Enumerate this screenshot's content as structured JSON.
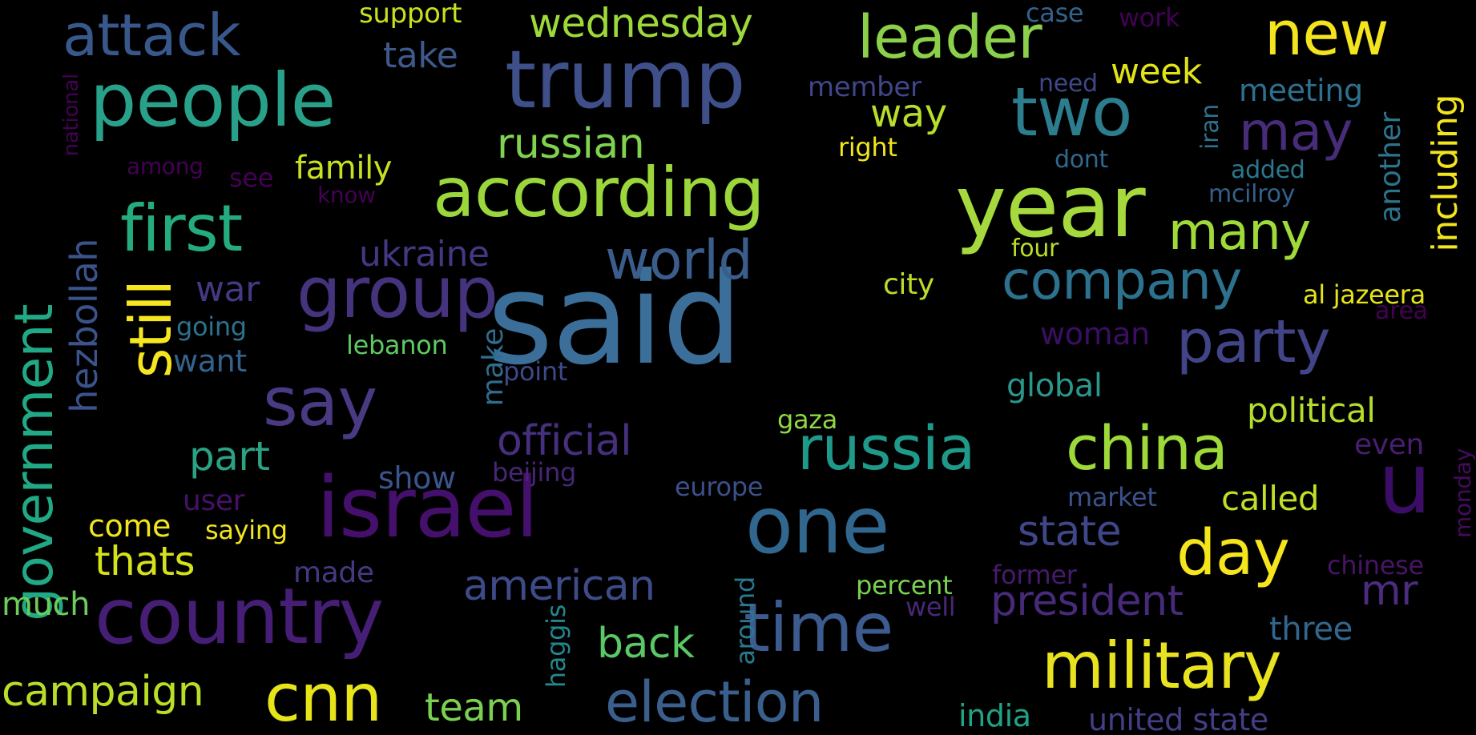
{
  "words": [
    {
      "text": "said",
      "weight": 130,
      "color": "#3b6f99"
    },
    {
      "text": "israel",
      "weight": 78,
      "color": "#45106b"
    },
    {
      "text": "trump",
      "weight": 70,
      "color": "#3e4f8a"
    },
    {
      "text": "country",
      "weight": 72,
      "color": "#471e76"
    },
    {
      "text": "year",
      "weight": 82,
      "color": "#a6d93d"
    },
    {
      "text": "according",
      "weight": 64,
      "color": "#9bd63c"
    },
    {
      "text": "one",
      "weight": 74,
      "color": "#31668e"
    },
    {
      "text": "people",
      "weight": 66,
      "color": "#29a08a"
    },
    {
      "text": "group",
      "weight": 62,
      "color": "#46337e"
    },
    {
      "text": "time",
      "weight": 64,
      "color": "#3c5b8f"
    },
    {
      "text": "two",
      "weight": 62,
      "color": "#2c7d8e"
    },
    {
      "text": "leader",
      "weight": 56,
      "color": "#8bd04b"
    },
    {
      "text": "first",
      "weight": 56,
      "color": "#24ac80"
    },
    {
      "text": "say",
      "weight": 60,
      "color": "#4a3a83"
    },
    {
      "text": "russia",
      "weight": 56,
      "color": "#1f9a8a"
    },
    {
      "text": "china",
      "weight": 56,
      "color": "#9ed93a"
    },
    {
      "text": "military",
      "weight": 56,
      "color": "#e8e31e"
    },
    {
      "text": "election",
      "weight": 52,
      "color": "#3a5f8d"
    },
    {
      "text": "cnn",
      "weight": 60,
      "color": "#e7e419"
    },
    {
      "text": "government",
      "weight": 50,
      "color": "#21a884"
    },
    {
      "text": "still",
      "weight": 52,
      "color": "#f6e61f"
    },
    {
      "text": "attack",
      "weight": 50,
      "color": "#38588c"
    },
    {
      "text": "new",
      "weight": 56,
      "color": "#f3e41e"
    },
    {
      "text": "company",
      "weight": 48,
      "color": "#2c718e"
    },
    {
      "text": "party",
      "weight": 52,
      "color": "#414487"
    },
    {
      "text": "many",
      "weight": 48,
      "color": "#a0da39"
    },
    {
      "text": "world",
      "weight": 50,
      "color": "#3b5d8c"
    },
    {
      "text": "day",
      "weight": 52,
      "color": "#f4e51d"
    },
    {
      "text": "may",
      "weight": 44,
      "color": "#472c7a"
    },
    {
      "text": "u",
      "weight": 80,
      "color": "#3c0d66"
    },
    {
      "text": "campaign",
      "weight": 38,
      "color": "#bade27"
    },
    {
      "text": "russian",
      "weight": 38,
      "color": "#7fd34e"
    },
    {
      "text": "official",
      "weight": 38,
      "color": "#46307e"
    },
    {
      "text": "american",
      "weight": 36,
      "color": "#3e4b89"
    },
    {
      "text": "president",
      "weight": 36,
      "color": "#472a7a"
    },
    {
      "text": "state",
      "weight": 36,
      "color": "#3f4788"
    },
    {
      "text": "wednesday",
      "weight": 36,
      "color": "#9dd93b"
    },
    {
      "text": "part",
      "weight": 34,
      "color": "#2aa283"
    },
    {
      "text": "back",
      "weight": 34,
      "color": "#5ac864"
    },
    {
      "text": "team",
      "weight": 34,
      "color": "#7ad151"
    },
    {
      "text": "thats",
      "weight": 34,
      "color": "#d5e21a"
    },
    {
      "text": "ukraine",
      "weight": 30,
      "color": "#453781"
    },
    {
      "text": "way",
      "weight": 30,
      "color": "#b8de29"
    },
    {
      "text": "war",
      "weight": 30,
      "color": "#443983"
    },
    {
      "text": "take",
      "weight": 28,
      "color": "#3e5a8c"
    },
    {
      "text": "hezbollah",
      "weight": 30,
      "color": "#3b528b"
    },
    {
      "text": "including",
      "weight": 30,
      "color": "#f1e51d"
    },
    {
      "text": "political",
      "weight": 28,
      "color": "#b5de2b"
    },
    {
      "text": "called",
      "weight": 28,
      "color": "#c0df25"
    },
    {
      "text": "week",
      "weight": 28,
      "color": "#e2e418"
    },
    {
      "text": "global",
      "weight": 26,
      "color": "#2a968c"
    },
    {
      "text": "come",
      "weight": 24,
      "color": "#f1e51d"
    },
    {
      "text": "mr",
      "weight": 36,
      "color": "#4b2c7f"
    },
    {
      "text": "much",
      "weight": 24,
      "color": "#6ccd5a"
    },
    {
      "text": "three",
      "weight": 24,
      "color": "#31678e"
    },
    {
      "text": "family",
      "weight": 24,
      "color": "#c9e020"
    },
    {
      "text": "want",
      "weight": 22,
      "color": "#33638d"
    },
    {
      "text": "meeting",
      "weight": 22,
      "color": "#2d708e"
    },
    {
      "text": "city",
      "weight": 22,
      "color": "#bade28"
    },
    {
      "text": "show",
      "weight": 22,
      "color": "#3a548c"
    },
    {
      "text": "made",
      "weight": 22,
      "color": "#443a83"
    },
    {
      "text": "user",
      "weight": 22,
      "color": "#46116a"
    },
    {
      "text": "another",
      "weight": 22,
      "color": "#2c738e"
    },
    {
      "text": "make",
      "weight": 22,
      "color": "#2e6d8e"
    },
    {
      "text": "woman",
      "weight": 22,
      "color": "#3b0e63"
    },
    {
      "text": "even",
      "weight": 22,
      "color": "#481f70"
    },
    {
      "text": "india",
      "weight": 22,
      "color": "#20a386"
    },
    {
      "text": "united state",
      "weight": 22,
      "color": "#433e85"
    },
    {
      "text": "al jazeera",
      "weight": 18,
      "color": "#e5e419"
    },
    {
      "text": "support",
      "weight": 18,
      "color": "#c8e020"
    },
    {
      "text": "case",
      "weight": 18,
      "color": "#33638d"
    },
    {
      "text": "work",
      "weight": 16,
      "color": "#440154"
    },
    {
      "text": "member",
      "weight": 18,
      "color": "#404688"
    },
    {
      "text": "need",
      "weight": 16,
      "color": "#3f4788"
    },
    {
      "text": "right",
      "weight": 16,
      "color": "#f1e51d"
    },
    {
      "text": "dont",
      "weight": 16,
      "color": "#31688e"
    },
    {
      "text": "added",
      "weight": 16,
      "color": "#2a778e"
    },
    {
      "text": "mcilroy",
      "weight": 16,
      "color": "#355f8d"
    },
    {
      "text": "iran",
      "weight": 16,
      "color": "#2e6f8e"
    },
    {
      "text": "four",
      "weight": 16,
      "color": "#bade28"
    },
    {
      "text": "area",
      "weight": 16,
      "color": "#440154"
    },
    {
      "text": "lebanon",
      "weight": 18,
      "color": "#5ec962"
    },
    {
      "text": "going",
      "weight": 18,
      "color": "#2c728e"
    },
    {
      "text": "point",
      "weight": 18,
      "color": "#3e4989"
    },
    {
      "text": "gaza",
      "weight": 18,
      "color": "#8fd744"
    },
    {
      "text": "beijing",
      "weight": 18,
      "color": "#482576"
    },
    {
      "text": "europe",
      "weight": 18,
      "color": "#3c508b"
    },
    {
      "text": "saying",
      "weight": 18,
      "color": "#f1e51d"
    },
    {
      "text": "market",
      "weight": 18,
      "color": "#3b528b"
    },
    {
      "text": "percent",
      "weight": 18,
      "color": "#7ad151"
    },
    {
      "text": "former",
      "weight": 18,
      "color": "#481a6c"
    },
    {
      "text": "well",
      "weight": 18,
      "color": "#482878"
    },
    {
      "text": "chinese",
      "weight": 18,
      "color": "#481467"
    },
    {
      "text": "monday",
      "weight": 16,
      "color": "#460a5d"
    },
    {
      "text": "haggis",
      "weight": 18,
      "color": "#24868e"
    },
    {
      "text": "around",
      "weight": 18,
      "color": "#2a788e"
    },
    {
      "text": "among",
      "weight": 16,
      "color": "#440154"
    },
    {
      "text": "see",
      "weight": 16,
      "color": "#440154"
    },
    {
      "text": "know",
      "weight": 14,
      "color": "#440154"
    },
    {
      "text": "national",
      "weight": 14,
      "color": "#440154"
    }
  ]
}
